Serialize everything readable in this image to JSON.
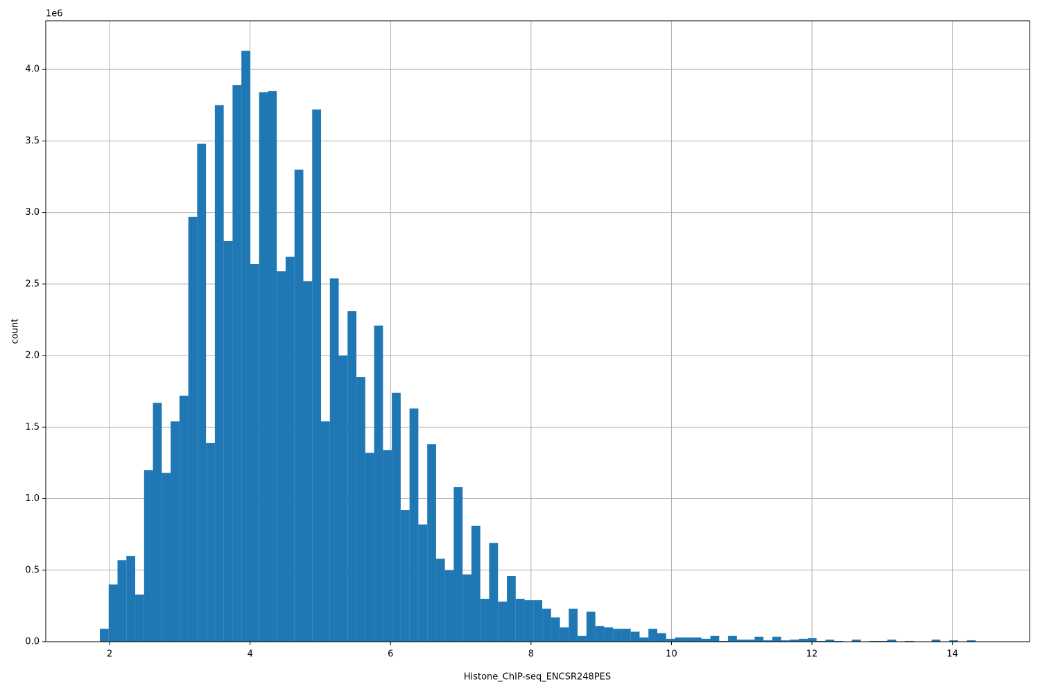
{
  "chart_data": {
    "type": "histogram",
    "x_label": "Histone_ChIP-seq_ENCSR248PES",
    "y_label": "count",
    "y_offset_label": "1e6",
    "color": "#1f77b4",
    "grid": true,
    "xlim": [
      1.09,
      15.1
    ],
    "ylim": [
      0,
      4.34
    ],
    "xticks": [
      2,
      4,
      6,
      8,
      10,
      12,
      14
    ],
    "yticks": [
      {
        "value": 0,
        "label": "0.0"
      },
      0.5,
      {
        "value": 1,
        "label": "1.0"
      },
      1.5,
      {
        "value": 2,
        "label": "2.0"
      },
      2.5,
      {
        "value": 3,
        "label": "3.0"
      },
      3.5,
      {
        "value": 4,
        "label": "4.0"
      }
    ],
    "bins": [
      1.86,
      1.986,
      2.112,
      2.238,
      2.364,
      2.49,
      2.616,
      2.742,
      2.868,
      2.994,
      3.12,
      3.246,
      3.372,
      3.498,
      3.624,
      3.75,
      3.876,
      4.002,
      4.128,
      4.254,
      4.38,
      4.506,
      4.632,
      4.758,
      4.884,
      5.01,
      5.136,
      5.262,
      5.388,
      5.514,
      5.64,
      5.766,
      5.892,
      6.018,
      6.144,
      6.27,
      6.396,
      6.522,
      6.648,
      6.774,
      6.9,
      7.026,
      7.152,
      7.278,
      7.404,
      7.53,
      7.656,
      7.782,
      7.908,
      8.034,
      8.16,
      8.286,
      8.412,
      8.538,
      8.664,
      8.79,
      8.916,
      9.042,
      9.168,
      9.294,
      9.42,
      9.546,
      9.672,
      9.798,
      9.924,
      10.05,
      10.176,
      10.302,
      10.428,
      10.554,
      10.68,
      10.806,
      10.932,
      11.058,
      11.184,
      11.31,
      11.436,
      11.562,
      11.688,
      11.814,
      11.94,
      12.066,
      12.192,
      12.318,
      12.444,
      12.57,
      12.696,
      12.822,
      12.948,
      13.074,
      13.2,
      13.326,
      13.452,
      13.578,
      13.704,
      13.83,
      13.956,
      14.082,
      14.208,
      14.334,
      14.46
    ],
    "values": [
      0.09,
      0.4,
      0.57,
      0.6,
      0.33,
      1.2,
      1.67,
      1.18,
      1.54,
      1.72,
      2.97,
      3.48,
      1.39,
      3.75,
      2.8,
      3.89,
      4.13,
      2.64,
      3.84,
      3.85,
      2.59,
      2.69,
      3.3,
      2.52,
      3.72,
      1.54,
      2.54,
      2.0,
      2.31,
      1.85,
      1.32,
      2.21,
      1.34,
      1.74,
      0.92,
      1.63,
      0.82,
      1.38,
      0.58,
      0.5,
      1.08,
      0.47,
      0.81,
      0.3,
      0.69,
      0.28,
      0.46,
      0.3,
      0.29,
      0.29,
      0.23,
      0.17,
      0.1,
      0.23,
      0.04,
      0.21,
      0.11,
      0.1,
      0.09,
      0.09,
      0.07,
      0.03,
      0.09,
      0.06,
      0.02,
      0.03,
      0.03,
      0.03,
      0.02,
      0.04,
      0.005,
      0.04,
      0.015,
      0.015,
      0.035,
      0.01,
      0.035,
      0.01,
      0.015,
      0.02,
      0.025,
      0.005,
      0.015,
      0.005,
      0,
      0.015,
      0,
      0.005,
      0.005,
      0.015,
      0,
      0.005,
      0,
      0,
      0.015,
      0,
      0.01,
      0,
      0.01,
      0
    ]
  }
}
